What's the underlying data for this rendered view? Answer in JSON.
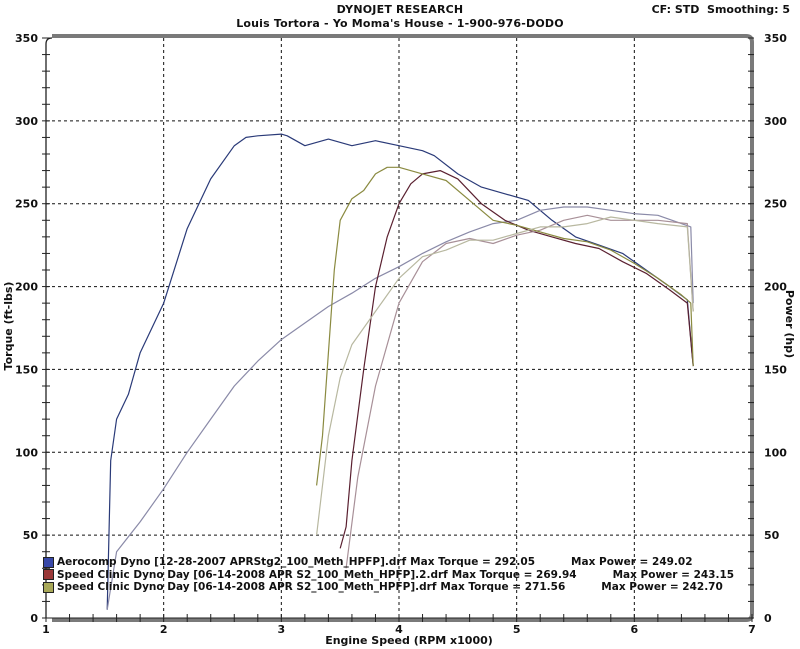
{
  "header": {
    "title": "DYNOJET RESEARCH",
    "subtitle": "Louis Tortora - Yo Moma's House - 1-900-976-DODO",
    "settings": "CF: STD  Smoothing: 5"
  },
  "legend": [
    {
      "label": "Aerocomp Dyno [12-28-2007 APRStg2_100_Meth_HPFP].drf",
      "max_torque": "Max Torque = 292.05",
      "max_power": "Max Power = 249.02",
      "color": "#2a3a9a"
    },
    {
      "label": "Speed Clinic Dyno Day [06-14-2008 APR S2_100_Meth_HPFP].2.drf",
      "max_torque": "Max Torque = 269.94",
      "max_power": "Max Power = 243.15",
      "color": "#8a2828"
    },
    {
      "label": "Speed Clinic Dyno Day [06-14-2008 APR S2_100_Meth_HPFP].drf",
      "max_torque": "Max Torque = 271.56",
      "max_power": "Max Power = 242.70",
      "color": "#9a9a40"
    }
  ],
  "chart_data": {
    "type": "line",
    "title": "DYNOJET RESEARCH",
    "subtitle": "Louis Tortora - Yo Moma's House - 1-900-976-DODO",
    "annotation": "CF: STD  Smoothing: 5",
    "xlabel": "Engine Speed (RPM x1000)",
    "ylabel": "Torque (ft-lbs)",
    "y2label": "Power (hp)",
    "xlim": [
      1,
      7
    ],
    "ylim": [
      0,
      350
    ],
    "y2lim": [
      0,
      350
    ],
    "xticks": [
      1,
      2,
      3,
      4,
      5,
      6,
      7
    ],
    "yticks": [
      0,
      50,
      100,
      150,
      200,
      250,
      300,
      350
    ],
    "y2ticks": [
      0,
      50,
      100,
      150,
      200,
      250,
      300,
      350
    ],
    "grid": true,
    "legend_position": "bottom-left inside",
    "series": [
      {
        "name": "Aerocomp Dyno [12-28-2007 APRStg2_100_Meth_HPFP].drf - Torque",
        "axis": "left",
        "color": "#2a3a78",
        "x": [
          1.52,
          1.55,
          1.6,
          1.7,
          1.8,
          2.0,
          2.2,
          2.4,
          2.6,
          2.7,
          2.8,
          3.0,
          3.05,
          3.2,
          3.4,
          3.6,
          3.8,
          4.0,
          4.2,
          4.3,
          4.5,
          4.7,
          4.9,
          5.1,
          5.3,
          5.5,
          5.7,
          5.9,
          6.1,
          6.3,
          6.45,
          6.5
        ],
        "y": [
          5,
          95,
          120,
          135,
          160,
          190,
          235,
          265,
          285,
          290,
          291,
          292,
          291,
          285,
          289,
          285,
          288,
          285,
          282,
          279,
          268,
          260,
          256,
          252,
          240,
          230,
          225,
          220,
          210,
          200,
          192,
          152
        ]
      },
      {
        "name": "Aerocomp Dyno [12-28-2007 APRStg2_100_Meth_HPFP].drf - Power",
        "axis": "right",
        "color": "#8a8aa8",
        "x": [
          1.52,
          1.6,
          1.8,
          2.0,
          2.2,
          2.4,
          2.6,
          2.8,
          3.0,
          3.2,
          3.4,
          3.6,
          3.8,
          4.0,
          4.2,
          4.4,
          4.6,
          4.8,
          5.0,
          5.2,
          5.4,
          5.6,
          5.8,
          6.0,
          6.2,
          6.4,
          6.48,
          6.5
        ],
        "y": [
          5,
          40,
          58,
          78,
          100,
          120,
          140,
          155,
          168,
          178,
          188,
          196,
          205,
          212,
          220,
          227,
          233,
          238,
          240,
          246,
          248,
          248,
          246,
          244,
          243,
          238,
          236,
          190
        ]
      },
      {
        "name": "Speed Clinic Dyno Day [06-14-2008 APR S2_100_Meth_HPFP].2.drf - Torque",
        "axis": "left",
        "color": "#5a2030",
        "x": [
          3.5,
          3.55,
          3.6,
          3.7,
          3.8,
          3.9,
          4.0,
          4.1,
          4.2,
          4.35,
          4.5,
          4.7,
          4.9,
          5.1,
          5.3,
          5.5,
          5.7,
          5.9,
          6.1,
          6.3,
          6.45,
          6.5
        ],
        "y": [
          42,
          55,
          95,
          150,
          200,
          230,
          250,
          262,
          268,
          270,
          265,
          250,
          240,
          234,
          230,
          226,
          223,
          215,
          208,
          198,
          190,
          152
        ]
      },
      {
        "name": "Speed Clinic Dyno Day [06-14-2008 APR S2_100_Meth_HPFP].2.drf - Power",
        "axis": "right",
        "color": "#a89098",
        "x": [
          3.55,
          3.65,
          3.8,
          4.0,
          4.2,
          4.4,
          4.6,
          4.8,
          5.0,
          5.2,
          5.4,
          5.6,
          5.8,
          6.0,
          6.2,
          6.45,
          6.5
        ],
        "y": [
          30,
          85,
          140,
          190,
          215,
          226,
          229,
          226,
          231,
          234,
          240,
          243,
          240,
          240,
          240,
          238,
          185
        ]
      },
      {
        "name": "Speed Clinic Dyno Day [06-14-2008 APR S2_100_Meth_HPFP].drf - Torque",
        "axis": "left",
        "color": "#8a8a40",
        "x": [
          3.3,
          3.35,
          3.4,
          3.45,
          3.5,
          3.6,
          3.7,
          3.8,
          3.9,
          4.0,
          4.2,
          4.4,
          4.6,
          4.8,
          5.0,
          5.2,
          5.4,
          5.6,
          5.8,
          6.0,
          6.2,
          6.4,
          6.48,
          6.5
        ],
        "y": [
          80,
          110,
          160,
          210,
          240,
          253,
          258,
          268,
          272,
          272,
          268,
          264,
          252,
          240,
          237,
          233,
          229,
          227,
          222,
          214,
          205,
          195,
          190,
          152
        ]
      },
      {
        "name": "Speed Clinic Dyno Day [06-14-2008 APR S2_100_Meth_HPFP].drf - Power",
        "axis": "right",
        "color": "#b8b8a0",
        "x": [
          3.3,
          3.4,
          3.5,
          3.6,
          3.8,
          4.0,
          4.2,
          4.4,
          4.6,
          4.8,
          5.0,
          5.2,
          5.4,
          5.6,
          5.8,
          6.0,
          6.2,
          6.45,
          6.5
        ],
        "y": [
          50,
          110,
          145,
          165,
          185,
          205,
          218,
          222,
          228,
          228,
          232,
          236,
          236,
          238,
          242,
          240,
          238,
          236,
          185
        ]
      }
    ]
  }
}
